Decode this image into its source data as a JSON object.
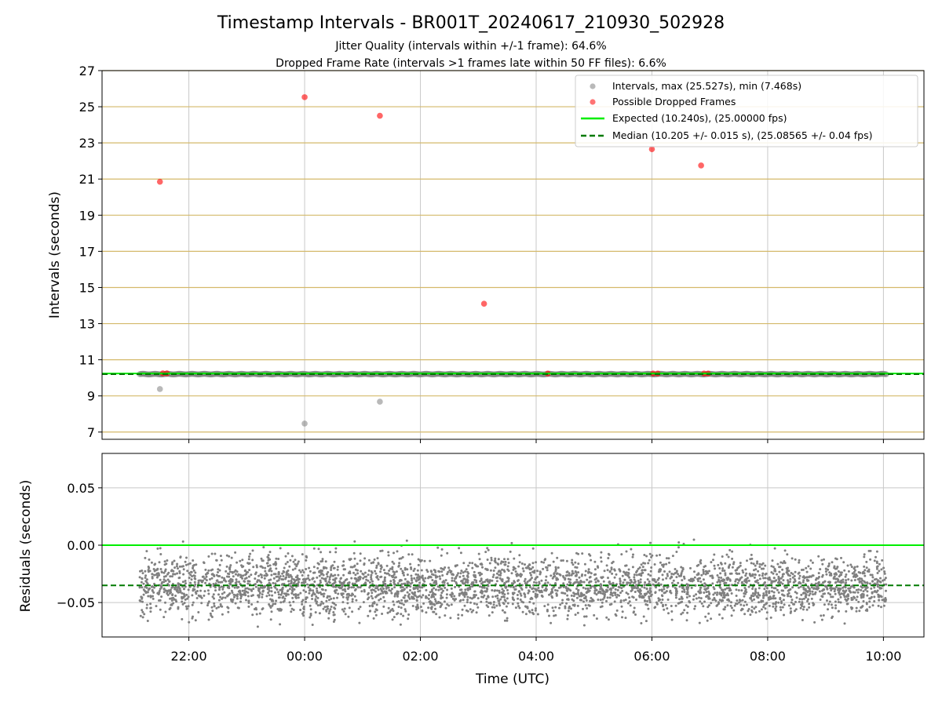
{
  "title": "Timestamp Intervals - BR001T_20240617_210930_502928",
  "subtitle_lines": [
    "Jitter Quality (intervals within +/-1 frame): 64.6%",
    "Dropped Frame Rate (intervals >1 frames late within 50 FF files): 6.6%"
  ],
  "colors": {
    "intervals": "#808080",
    "dropped": "#ff0000",
    "expected": "#00ee00",
    "median": "#007a00",
    "hline": "#d4b96a",
    "grid": "#c8c8c8"
  },
  "chart_data": [
    {
      "type": "scatter",
      "panel": "top",
      "xlabel": "",
      "ylabel": "Intervals (seconds)",
      "x_unit": "hours (UTC, continuing past midnight)",
      "xlim": [
        20.5,
        34.7
      ],
      "ylim": [
        6.6,
        27.0
      ],
      "yticks": [
        7,
        9,
        11,
        13,
        15,
        17,
        19,
        21,
        23,
        25,
        27
      ],
      "ytick_labels": [
        "7",
        "9",
        "11",
        "13",
        "15",
        "17",
        "19",
        "21",
        "23",
        "25",
        "27"
      ],
      "horizontal_lines_at": [
        7,
        9,
        11,
        13,
        15,
        17,
        19,
        21,
        23,
        25,
        27
      ],
      "x_grid_at": [
        22,
        24,
        26,
        28,
        30,
        32,
        34
      ],
      "grid": true,
      "legend_position": "top-right",
      "legend": [
        "Intervals, max (25.527s), min (7.468s)",
        "Possible Dropped Frames",
        "Expected (10.240s), (25.00000 fps)",
        "Median (10.205 +/- 0.015 s), (25.08565 +/- 0.04 fps)"
      ],
      "intervals_band": {
        "x_start": 21.15,
        "x_end": 34.05,
        "y": 10.205
      },
      "intervals_outliers": [
        {
          "x": 21.5,
          "y": 9.38
        },
        {
          "x": 24.0,
          "y": 7.47
        },
        {
          "x": 25.3,
          "y": 8.68
        }
      ],
      "dropped_frames": [
        {
          "x": 21.5,
          "y": 20.85
        },
        {
          "x": 24.0,
          "y": 25.53
        },
        {
          "x": 25.3,
          "y": 24.5
        },
        {
          "x": 27.1,
          "y": 14.1
        },
        {
          "x": 30.0,
          "y": 22.65
        },
        {
          "x": 30.85,
          "y": 21.75
        },
        {
          "x": 21.55,
          "y": 10.25
        },
        {
          "x": 21.62,
          "y": 10.25
        },
        {
          "x": 28.2,
          "y": 10.24
        },
        {
          "x": 30.02,
          "y": 10.24
        },
        {
          "x": 30.1,
          "y": 10.24
        },
        {
          "x": 30.9,
          "y": 10.24
        },
        {
          "x": 30.97,
          "y": 10.24
        }
      ],
      "expected": 10.24,
      "median": 10.205
    },
    {
      "type": "scatter",
      "panel": "bottom",
      "xlabel": "Time (UTC)",
      "ylabel": "Residuals (seconds)",
      "x_unit": "hours (UTC, continuing past midnight)",
      "xlim": [
        20.5,
        34.7
      ],
      "ylim": [
        -0.08,
        0.08
      ],
      "yticks": [
        -0.05,
        0.0,
        0.05
      ],
      "ytick_labels": [
        "−0.05",
        "0.00",
        "0.05"
      ],
      "xticks": [
        22,
        24,
        26,
        28,
        30,
        32,
        34
      ],
      "xtick_labels": [
        "22:00",
        "00:00",
        "02:00",
        "04:00",
        "06:00",
        "08:00",
        "10:00"
      ],
      "grid": true,
      "residuals_cloud": {
        "x_start": 21.15,
        "x_end": 34.05,
        "center": -0.035,
        "spread_sd": 0.013,
        "approx_count": 3800
      },
      "expected_residual": 0.0,
      "median_residual": -0.035
    }
  ]
}
